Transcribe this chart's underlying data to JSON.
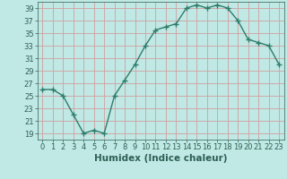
{
  "x": [
    0,
    1,
    2,
    3,
    4,
    5,
    6,
    7,
    8,
    9,
    10,
    11,
    12,
    13,
    14,
    15,
    16,
    17,
    18,
    19,
    20,
    21,
    22,
    23
  ],
  "y": [
    26,
    26,
    25,
    22,
    19,
    19.5,
    19,
    25,
    27.5,
    30,
    33,
    35.5,
    36,
    36.5,
    39,
    39.5,
    39,
    39.5,
    39,
    37,
    34,
    33.5,
    33,
    30
  ],
  "line_color": "#2d7d6b",
  "marker": "+",
  "bg_color": "#c0e8e4",
  "grid_color": "#d0a0a0",
  "xlabel": "Humidex (Indice chaleur)",
  "ylim": [
    18,
    40
  ],
  "yticks": [
    19,
    21,
    23,
    25,
    27,
    29,
    31,
    33,
    35,
    37,
    39
  ],
  "xticks": [
    0,
    1,
    2,
    3,
    4,
    5,
    6,
    7,
    8,
    9,
    10,
    11,
    12,
    13,
    14,
    15,
    16,
    17,
    18,
    19,
    20,
    21,
    22,
    23
  ],
  "xlim": [
    -0.5,
    23.5
  ],
  "font_color": "#2d6055",
  "font_size": 6.0,
  "xlabel_fontsize": 7.5,
  "linewidth": 1.0,
  "markersize": 4
}
